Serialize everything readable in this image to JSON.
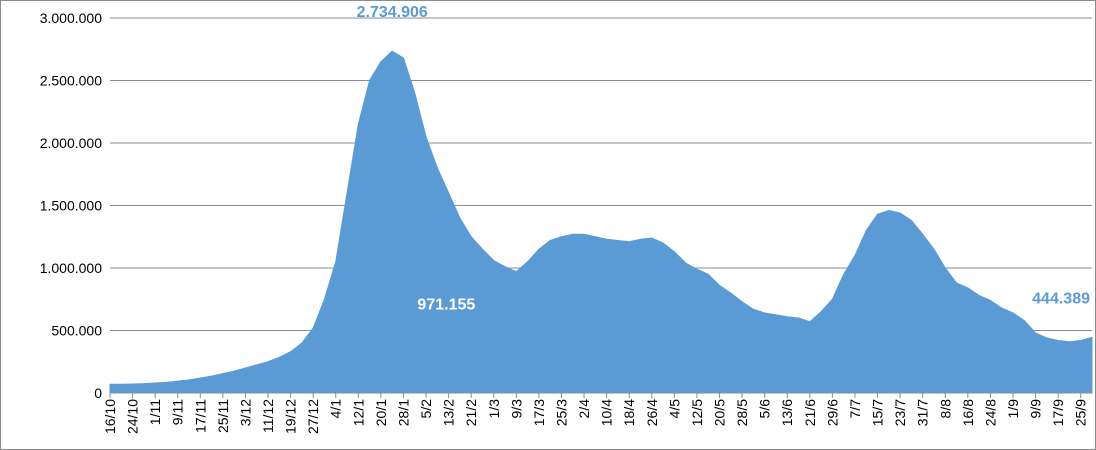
{
  "chart_data": {
    "type": "area",
    "categories": [
      "16/10",
      null,
      "24/10",
      null,
      "1/11",
      null,
      "9/11",
      null,
      "17/11",
      null,
      "25/11",
      null,
      "3/12",
      null,
      "11/12",
      null,
      "19/12",
      null,
      "27/12",
      null,
      "4/1",
      null,
      "12/1",
      null,
      "20/1",
      null,
      "28/1",
      null,
      "5/2",
      null,
      "13/2",
      null,
      "21/2",
      null,
      "1/3",
      null,
      "9/3",
      null,
      "17/3",
      null,
      "25/3",
      null,
      "2/4",
      null,
      "10/4",
      null,
      "18/4",
      null,
      "26/4",
      null,
      "4/5",
      null,
      "12/5",
      null,
      "20/5",
      null,
      "28/5",
      null,
      "5/6",
      null,
      "13/6",
      null,
      "21/6",
      null,
      "29/6",
      null,
      "7/7",
      null,
      "15/7",
      null,
      "23/7",
      null,
      "31/7",
      null,
      "8/8",
      null,
      "16/8",
      null,
      "24/8",
      null,
      "1/9",
      null,
      "9/9",
      null,
      "17/9",
      null,
      "25/9",
      null
    ],
    "values": [
      70000,
      70000,
      72000,
      75000,
      80000,
      85000,
      95000,
      105000,
      120000,
      135000,
      155000,
      175000,
      200000,
      225000,
      250000,
      285000,
      330000,
      400000,
      520000,
      750000,
      1050000,
      1600000,
      2150000,
      2500000,
      2650000,
      2734906,
      2680000,
      2400000,
      2050000,
      1800000,
      1600000,
      1400000,
      1250000,
      1150000,
      1060000,
      1010000,
      971155,
      1050000,
      1150000,
      1220000,
      1250000,
      1270000,
      1270000,
      1250000,
      1230000,
      1220000,
      1210000,
      1230000,
      1240000,
      1200000,
      1130000,
      1040000,
      990000,
      950000,
      860000,
      800000,
      730000,
      670000,
      640000,
      625000,
      610000,
      600000,
      570000,
      650000,
      750000,
      950000,
      1100000,
      1300000,
      1430000,
      1460000,
      1440000,
      1380000,
      1270000,
      1150000,
      1000000,
      880000,
      840000,
      780000,
      740000,
      680000,
      640000,
      580000,
      480000,
      440000,
      420000,
      410000,
      420000,
      444389
    ],
    "value_labels": [
      null,
      null,
      null,
      null,
      null,
      null,
      null,
      null,
      null,
      null,
      null,
      null,
      null,
      null,
      null,
      null,
      null,
      null,
      null,
      null,
      null,
      null,
      null,
      null,
      null,
      "2.734.906",
      null,
      null,
      null,
      null,
      null,
      null,
      null,
      null,
      null,
      null,
      "971.155",
      null,
      null,
      null,
      null,
      null,
      null,
      null,
      null,
      null,
      null,
      null,
      null,
      null,
      null,
      null,
      null,
      null,
      null,
      null,
      null,
      null,
      null,
      null,
      null,
      null,
      null,
      null,
      null,
      null,
      null,
      null,
      null,
      null,
      null,
      null,
      null,
      null,
      null,
      null,
      null,
      null,
      null,
      null,
      null,
      null,
      null,
      null,
      null,
      null,
      null,
      "444.389"
    ],
    "color": "#5b9bd5",
    "ylim": [
      0,
      3000000
    ],
    "yticks": [
      0,
      {
        "value": 500000,
        "label": "500.000"
      },
      {
        "value": 1000000,
        "label": "1.000.000"
      },
      {
        "value": 1500000,
        "label": "1.500.000"
      },
      {
        "value": 2000000,
        "label": "2.000.000"
      },
      {
        "value": 2500000,
        "label": "2.500.000"
      },
      {
        "value": 3000000,
        "label": "3.000.000"
      }
    ],
    "grid": true
  }
}
